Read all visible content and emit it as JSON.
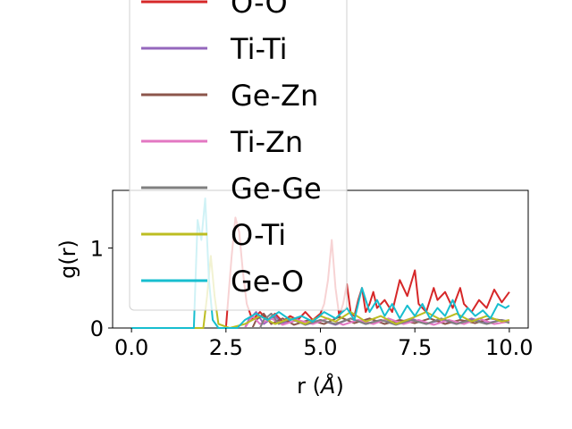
{
  "chart_data": {
    "type": "line",
    "xlabel": "r (",
    "xlabel_symbol": "Å",
    "xlabel_close": ")",
    "ylabel": "g(r)",
    "xlim": [
      -0.5,
      10.5
    ],
    "ylim": [
      0,
      1.72
    ],
    "x_ticks": [
      0.0,
      2.5,
      5.0,
      7.5,
      10.0
    ],
    "x_tick_labels": [
      "0.0",
      "2.5",
      "5.0",
      "7.5",
      "10.0"
    ],
    "y_ticks": [
      0,
      1
    ],
    "y_tick_labels": [
      "0",
      "1"
    ],
    "legend_placement": "upper-center (overflowing above the axes)",
    "series": [
      {
        "name": "O-O",
        "color": "#d62728",
        "points": [
          [
            0.0,
            0
          ],
          [
            2.5,
            0
          ],
          [
            2.55,
            0.3
          ],
          [
            2.65,
            0.9
          ],
          [
            2.75,
            1.38
          ],
          [
            2.85,
            1.2
          ],
          [
            2.95,
            0.7
          ],
          [
            3.05,
            0.3
          ],
          [
            3.2,
            0.1
          ],
          [
            3.4,
            0.2
          ],
          [
            3.6,
            0.1
          ],
          [
            3.8,
            0.18
          ],
          [
            4.0,
            0.08
          ],
          [
            4.2,
            0.15
          ],
          [
            4.4,
            0.1
          ],
          [
            4.6,
            0.2
          ],
          [
            4.8,
            0.1
          ],
          [
            5.0,
            0.18
          ],
          [
            5.1,
            0.3
          ],
          [
            5.2,
            0.6
          ],
          [
            5.3,
            1.1
          ],
          [
            5.4,
            0.5
          ],
          [
            5.5,
            0.15
          ],
          [
            5.6,
            0.3
          ],
          [
            5.7,
            0.55
          ],
          [
            5.8,
            0.2
          ],
          [
            5.9,
            0.15
          ],
          [
            6.0,
            0.35
          ],
          [
            6.1,
            0.5
          ],
          [
            6.2,
            0.2
          ],
          [
            6.3,
            0.3
          ],
          [
            6.4,
            0.45
          ],
          [
            6.5,
            0.25
          ],
          [
            6.7,
            0.35
          ],
          [
            6.9,
            0.2
          ],
          [
            7.1,
            0.6
          ],
          [
            7.3,
            0.4
          ],
          [
            7.5,
            0.72
          ],
          [
            7.6,
            0.3
          ],
          [
            7.8,
            0.2
          ],
          [
            8.0,
            0.5
          ],
          [
            8.1,
            0.35
          ],
          [
            8.3,
            0.45
          ],
          [
            8.5,
            0.25
          ],
          [
            8.7,
            0.5
          ],
          [
            8.8,
            0.3
          ],
          [
            9.0,
            0.2
          ],
          [
            9.2,
            0.35
          ],
          [
            9.4,
            0.25
          ],
          [
            9.6,
            0.48
          ],
          [
            9.8,
            0.32
          ],
          [
            10.0,
            0.45
          ]
        ]
      },
      {
        "name": "Ti-Ti",
        "color": "#9467bd",
        "points": [
          [
            0.0,
            0
          ],
          [
            3.0,
            0
          ],
          [
            3.1,
            0.1
          ],
          [
            3.3,
            0.2
          ],
          [
            3.5,
            0.05
          ],
          [
            3.8,
            0.15
          ],
          [
            4.0,
            0.05
          ],
          [
            4.3,
            0.12
          ],
          [
            4.6,
            0.04
          ],
          [
            5.0,
            0.1
          ],
          [
            5.4,
            0.04
          ],
          [
            5.8,
            0.12
          ],
          [
            6.2,
            0.05
          ],
          [
            6.6,
            0.1
          ],
          [
            7.0,
            0.06
          ],
          [
            7.4,
            0.12
          ],
          [
            7.8,
            0.05
          ],
          [
            8.2,
            0.1
          ],
          [
            8.6,
            0.05
          ],
          [
            9.0,
            0.12
          ],
          [
            9.4,
            0.06
          ],
          [
            9.8,
            0.1
          ],
          [
            10.0,
            0.08
          ]
        ]
      },
      {
        "name": "Ge-Zn",
        "color": "#8c564b",
        "points": [
          [
            0.0,
            0
          ],
          [
            3.2,
            0
          ],
          [
            3.3,
            0.1
          ],
          [
            3.5,
            0.18
          ],
          [
            3.7,
            0.05
          ],
          [
            4.0,
            0.12
          ],
          [
            4.3,
            0.04
          ],
          [
            4.7,
            0.1
          ],
          [
            5.1,
            0.05
          ],
          [
            5.5,
            0.14
          ],
          [
            5.9,
            0.06
          ],
          [
            6.3,
            0.12
          ],
          [
            6.7,
            0.05
          ],
          [
            7.1,
            0.1
          ],
          [
            7.5,
            0.06
          ],
          [
            7.9,
            0.12
          ],
          [
            8.3,
            0.05
          ],
          [
            8.7,
            0.1
          ],
          [
            9.1,
            0.06
          ],
          [
            9.5,
            0.12
          ],
          [
            10.0,
            0.08
          ]
        ]
      },
      {
        "name": "Ti-Zn",
        "color": "#e377c2",
        "points": [
          [
            0.0,
            0
          ],
          [
            3.0,
            0
          ],
          [
            3.2,
            0.15
          ],
          [
            3.4,
            0.05
          ],
          [
            3.7,
            0.12
          ],
          [
            4.0,
            0.04
          ],
          [
            4.4,
            0.1
          ],
          [
            4.8,
            0.05
          ],
          [
            5.2,
            0.12
          ],
          [
            5.6,
            0.04
          ],
          [
            6.0,
            0.1
          ],
          [
            6.4,
            0.05
          ],
          [
            6.8,
            0.12
          ],
          [
            7.2,
            0.05
          ],
          [
            7.6,
            0.1
          ],
          [
            8.0,
            0.04
          ],
          [
            8.4,
            0.1
          ],
          [
            8.8,
            0.05
          ],
          [
            9.2,
            0.12
          ],
          [
            9.6,
            0.05
          ],
          [
            10.0,
            0.08
          ]
        ]
      },
      {
        "name": "Ge-Ge",
        "color": "#7f7f7f",
        "points": [
          [
            0.0,
            0
          ],
          [
            3.4,
            0
          ],
          [
            3.5,
            0.1
          ],
          [
            3.7,
            0.18
          ],
          [
            3.9,
            0.05
          ],
          [
            4.2,
            0.12
          ],
          [
            4.6,
            0.04
          ],
          [
            5.0,
            0.1
          ],
          [
            5.4,
            0.05
          ],
          [
            5.8,
            0.12
          ],
          [
            6.2,
            0.05
          ],
          [
            6.6,
            0.1
          ],
          [
            7.0,
            0.04
          ],
          [
            7.4,
            0.1
          ],
          [
            7.8,
            0.05
          ],
          [
            8.2,
            0.12
          ],
          [
            8.6,
            0.05
          ],
          [
            9.0,
            0.1
          ],
          [
            9.4,
            0.05
          ],
          [
            9.8,
            0.1
          ],
          [
            10.0,
            0.06
          ]
        ]
      },
      {
        "name": "O-Ti",
        "color": "#bcbd22",
        "points": [
          [
            0.0,
            0
          ],
          [
            1.9,
            0
          ],
          [
            2.0,
            0.4
          ],
          [
            2.1,
            0.9
          ],
          [
            2.2,
            0.4
          ],
          [
            2.3,
            0.05
          ],
          [
            2.6,
            0
          ],
          [
            3.0,
            0.05
          ],
          [
            3.4,
            0.15
          ],
          [
            3.8,
            0.05
          ],
          [
            4.2,
            0.12
          ],
          [
            4.6,
            0.05
          ],
          [
            5.0,
            0.15
          ],
          [
            5.4,
            0.08
          ],
          [
            5.8,
            0.2
          ],
          [
            6.2,
            0.08
          ],
          [
            6.6,
            0.15
          ],
          [
            7.0,
            0.05
          ],
          [
            7.4,
            0.12
          ],
          [
            7.8,
            0.2
          ],
          [
            8.2,
            0.1
          ],
          [
            8.6,
            0.18
          ],
          [
            9.0,
            0.08
          ],
          [
            9.4,
            0.15
          ],
          [
            9.8,
            0.08
          ],
          [
            10.0,
            0.1
          ]
        ]
      },
      {
        "name": "Ge-O",
        "color": "#17becf",
        "points": [
          [
            0.0,
            0
          ],
          [
            1.65,
            0
          ],
          [
            1.75,
            1.35
          ],
          [
            1.85,
            1.1
          ],
          [
            1.95,
            1.62
          ],
          [
            2.05,
            0.6
          ],
          [
            2.15,
            0.1
          ],
          [
            2.3,
            0
          ],
          [
            2.8,
            0
          ],
          [
            3.0,
            0.1
          ],
          [
            3.3,
            0.18
          ],
          [
            3.6,
            0.1
          ],
          [
            3.9,
            0.2
          ],
          [
            4.2,
            0.1
          ],
          [
            4.5,
            0.15
          ],
          [
            4.8,
            0.08
          ],
          [
            5.1,
            0.2
          ],
          [
            5.4,
            0.12
          ],
          [
            5.7,
            0.25
          ],
          [
            5.9,
            0.1
          ],
          [
            6.1,
            0.5
          ],
          [
            6.3,
            0.2
          ],
          [
            6.5,
            0.35
          ],
          [
            6.7,
            0.15
          ],
          [
            6.9,
            0.3
          ],
          [
            7.1,
            0.12
          ],
          [
            7.3,
            0.28
          ],
          [
            7.5,
            0.15
          ],
          [
            7.7,
            0.3
          ],
          [
            7.9,
            0.12
          ],
          [
            8.1,
            0.25
          ],
          [
            8.3,
            0.15
          ],
          [
            8.5,
            0.35
          ],
          [
            8.7,
            0.12
          ],
          [
            8.9,
            0.25
          ],
          [
            9.1,
            0.15
          ],
          [
            9.3,
            0.22
          ],
          [
            9.5,
            0.12
          ],
          [
            9.7,
            0.3
          ],
          [
            9.9,
            0.25
          ],
          [
            10.0,
            0.28
          ]
        ]
      }
    ]
  }
}
